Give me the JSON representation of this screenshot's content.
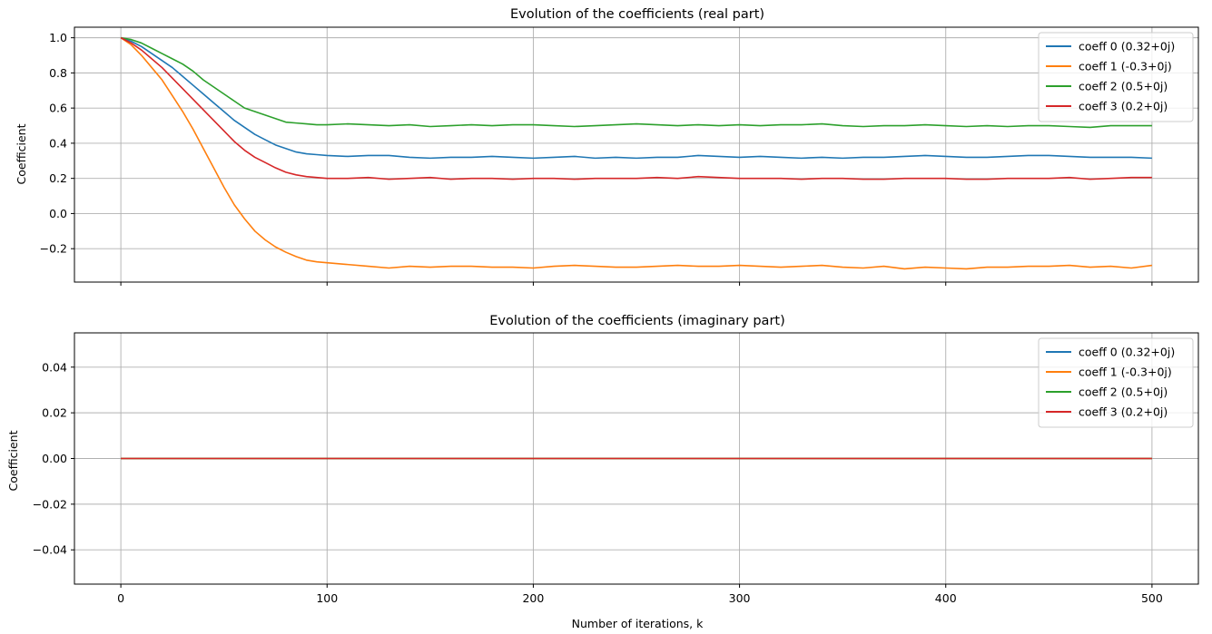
{
  "chart_data": [
    {
      "type": "line",
      "title": "Evolution of the coefficients (real part)",
      "xlabel": "",
      "ylabel": "Coefficient",
      "xlim": [
        -22.5,
        522.5
      ],
      "ylim": [
        -0.39,
        1.06
      ],
      "xticks": [
        0,
        100,
        200,
        300,
        400,
        500
      ],
      "xtick_labels": [
        "",
        "",
        "",
        "",
        "",
        ""
      ],
      "yticks": [
        -0.2,
        0.0,
        0.2,
        0.4,
        0.6,
        0.8,
        1.0
      ],
      "ytick_labels": [
        "−0.2",
        "0.0",
        "0.2",
        "0.4",
        "0.6",
        "0.8",
        "1.0"
      ],
      "grid": true,
      "legend_position": "top-right",
      "series": [
        {
          "name": "coeff 0 (0.32+0j)",
          "color": "#1f77b4",
          "x": [
            0,
            5,
            10,
            15,
            20,
            25,
            30,
            35,
            40,
            45,
            50,
            55,
            60,
            65,
            70,
            75,
            80,
            85,
            90,
            95,
            100,
            110,
            120,
            130,
            140,
            150,
            160,
            170,
            180,
            190,
            200,
            210,
            220,
            230,
            240,
            250,
            260,
            270,
            280,
            290,
            300,
            310,
            320,
            330,
            340,
            350,
            360,
            370,
            380,
            390,
            400,
            410,
            420,
            430,
            440,
            450,
            460,
            470,
            480,
            490,
            500
          ],
          "y": [
            1.0,
            0.98,
            0.95,
            0.91,
            0.87,
            0.83,
            0.78,
            0.73,
            0.68,
            0.63,
            0.58,
            0.53,
            0.49,
            0.45,
            0.42,
            0.39,
            0.37,
            0.35,
            0.34,
            0.335,
            0.33,
            0.325,
            0.33,
            0.33,
            0.32,
            0.315,
            0.32,
            0.32,
            0.325,
            0.32,
            0.315,
            0.32,
            0.325,
            0.315,
            0.32,
            0.315,
            0.32,
            0.32,
            0.33,
            0.325,
            0.32,
            0.325,
            0.32,
            0.315,
            0.32,
            0.315,
            0.32,
            0.32,
            0.325,
            0.33,
            0.325,
            0.32,
            0.32,
            0.325,
            0.33,
            0.33,
            0.325,
            0.32,
            0.32,
            0.32,
            0.315
          ]
        },
        {
          "name": "coeff 1 (-0.3+0j)",
          "color": "#ff7f0e",
          "x": [
            0,
            5,
            10,
            15,
            20,
            25,
            30,
            35,
            40,
            45,
            50,
            55,
            60,
            65,
            70,
            75,
            80,
            85,
            90,
            95,
            100,
            110,
            120,
            130,
            140,
            150,
            160,
            170,
            180,
            190,
            200,
            210,
            220,
            230,
            240,
            250,
            260,
            270,
            280,
            290,
            300,
            310,
            320,
            330,
            340,
            350,
            360,
            370,
            380,
            390,
            400,
            410,
            420,
            430,
            440,
            450,
            460,
            470,
            480,
            490,
            500
          ],
          "y": [
            1.0,
            0.96,
            0.9,
            0.83,
            0.76,
            0.67,
            0.58,
            0.48,
            0.37,
            0.26,
            0.15,
            0.05,
            -0.03,
            -0.1,
            -0.15,
            -0.19,
            -0.22,
            -0.245,
            -0.265,
            -0.275,
            -0.28,
            -0.29,
            -0.3,
            -0.31,
            -0.3,
            -0.305,
            -0.3,
            -0.3,
            -0.305,
            -0.305,
            -0.31,
            -0.3,
            -0.295,
            -0.3,
            -0.305,
            -0.305,
            -0.3,
            -0.295,
            -0.3,
            -0.3,
            -0.295,
            -0.3,
            -0.305,
            -0.3,
            -0.295,
            -0.305,
            -0.31,
            -0.3,
            -0.315,
            -0.305,
            -0.31,
            -0.315,
            -0.305,
            -0.305,
            -0.3,
            -0.3,
            -0.295,
            -0.305,
            -0.3,
            -0.31,
            -0.295
          ]
        },
        {
          "name": "coeff 2 (0.5+0j)",
          "color": "#2ca02c",
          "x": [
            0,
            5,
            10,
            15,
            20,
            25,
            30,
            35,
            40,
            45,
            50,
            55,
            60,
            65,
            70,
            75,
            80,
            85,
            90,
            95,
            100,
            110,
            120,
            130,
            140,
            150,
            160,
            170,
            180,
            190,
            200,
            210,
            220,
            230,
            240,
            250,
            260,
            270,
            280,
            290,
            300,
            310,
            320,
            330,
            340,
            350,
            360,
            370,
            380,
            390,
            400,
            410,
            420,
            430,
            440,
            450,
            460,
            470,
            480,
            490,
            500
          ],
          "y": [
            1.0,
            0.99,
            0.97,
            0.94,
            0.91,
            0.88,
            0.85,
            0.81,
            0.76,
            0.72,
            0.68,
            0.64,
            0.6,
            0.58,
            0.56,
            0.54,
            0.52,
            0.515,
            0.51,
            0.505,
            0.505,
            0.51,
            0.505,
            0.5,
            0.505,
            0.495,
            0.5,
            0.505,
            0.5,
            0.505,
            0.505,
            0.5,
            0.495,
            0.5,
            0.505,
            0.51,
            0.505,
            0.5,
            0.505,
            0.5,
            0.505,
            0.5,
            0.505,
            0.505,
            0.51,
            0.5,
            0.495,
            0.5,
            0.5,
            0.505,
            0.5,
            0.495,
            0.5,
            0.495,
            0.5,
            0.5,
            0.495,
            0.49,
            0.5,
            0.5,
            0.5
          ]
        },
        {
          "name": "coeff 3 (0.2+0j)",
          "color": "#d62728",
          "x": [
            0,
            5,
            10,
            15,
            20,
            25,
            30,
            35,
            40,
            45,
            50,
            55,
            60,
            65,
            70,
            75,
            80,
            85,
            90,
            95,
            100,
            110,
            120,
            130,
            140,
            150,
            160,
            170,
            180,
            190,
            200,
            210,
            220,
            230,
            240,
            250,
            260,
            270,
            280,
            290,
            300,
            310,
            320,
            330,
            340,
            350,
            360,
            370,
            380,
            390,
            400,
            410,
            420,
            430,
            440,
            450,
            460,
            470,
            480,
            490,
            500
          ],
          "y": [
            1.0,
            0.97,
            0.93,
            0.88,
            0.83,
            0.77,
            0.71,
            0.65,
            0.59,
            0.53,
            0.47,
            0.41,
            0.36,
            0.32,
            0.29,
            0.26,
            0.235,
            0.22,
            0.21,
            0.205,
            0.2,
            0.2,
            0.205,
            0.195,
            0.2,
            0.205,
            0.195,
            0.2,
            0.2,
            0.195,
            0.2,
            0.2,
            0.195,
            0.2,
            0.2,
            0.2,
            0.205,
            0.2,
            0.21,
            0.205,
            0.2,
            0.2,
            0.2,
            0.195,
            0.2,
            0.2,
            0.195,
            0.195,
            0.2,
            0.2,
            0.2,
            0.195,
            0.195,
            0.2,
            0.2,
            0.2,
            0.205,
            0.195,
            0.2,
            0.205,
            0.205
          ]
        }
      ]
    },
    {
      "type": "line",
      "title": "Evolution of the coefficients (imaginary part)",
      "xlabel": "Number of iterations, k",
      "ylabel": "Coefficient",
      "xlim": [
        -22.5,
        522.5
      ],
      "ylim": [
        -0.055,
        0.055
      ],
      "xticks": [
        0,
        100,
        200,
        300,
        400,
        500
      ],
      "xtick_labels": [
        "0",
        "100",
        "200",
        "300",
        "400",
        "500"
      ],
      "yticks": [
        -0.04,
        -0.02,
        0.0,
        0.02,
        0.04
      ],
      "ytick_labels": [
        "−0.04",
        "−0.02",
        "0.00",
        "0.02",
        "0.04"
      ],
      "grid": true,
      "legend_position": "top-right",
      "series": [
        {
          "name": "coeff 0 (0.32+0j)",
          "color": "#1f77b4",
          "x": [
            0,
            500
          ],
          "y": [
            0,
            0
          ]
        },
        {
          "name": "coeff 1 (-0.3+0j)",
          "color": "#ff7f0e",
          "x": [
            0,
            500
          ],
          "y": [
            0,
            0
          ]
        },
        {
          "name": "coeff 2 (0.5+0j)",
          "color": "#2ca02c",
          "x": [
            0,
            500
          ],
          "y": [
            0,
            0
          ]
        },
        {
          "name": "coeff 3 (0.2+0j)",
          "color": "#d62728",
          "x": [
            0,
            500
          ],
          "y": [
            0,
            0
          ]
        }
      ]
    }
  ]
}
